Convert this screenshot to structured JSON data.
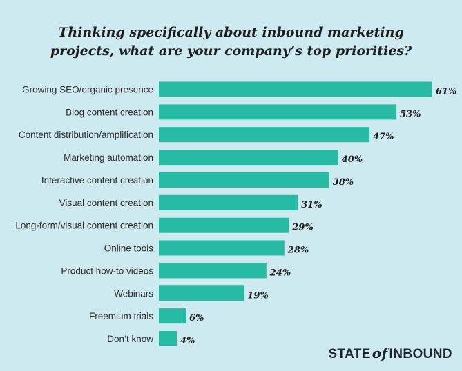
{
  "chart_data": {
    "type": "bar",
    "orientation": "horizontal",
    "title_lines": [
      "Thinking specifically about inbound marketing",
      "projects, what are your company’s top priorities?"
    ],
    "categories": [
      "Growing SEO/organic presence",
      "Blog content creation",
      "Content distribution/amplification",
      "Marketing automation",
      "Interactive content creation",
      "Visual content creation",
      "Long-form/visual content creation",
      "Online tools",
      "Product how-to videos",
      "Webinars",
      "Freemium trials",
      "Don’t know"
    ],
    "values": [
      61,
      53,
      47,
      40,
      38,
      31,
      29,
      28,
      24,
      19,
      6,
      4
    ],
    "value_labels": [
      "61%",
      "53%",
      "47%",
      "40%",
      "38%",
      "31%",
      "29%",
      "28%",
      "24%",
      "19%",
      "6%",
      "4%"
    ],
    "unit": "%",
    "xlim": [
      0,
      61
    ],
    "grid": false,
    "legend": "none",
    "colors": {
      "background": "#cdeaf0",
      "bar": "#28bba3",
      "text": "#2b2b2b"
    }
  },
  "branding": {
    "part1": "STATE",
    "part2": "of",
    "part3": "INBOUND"
  }
}
